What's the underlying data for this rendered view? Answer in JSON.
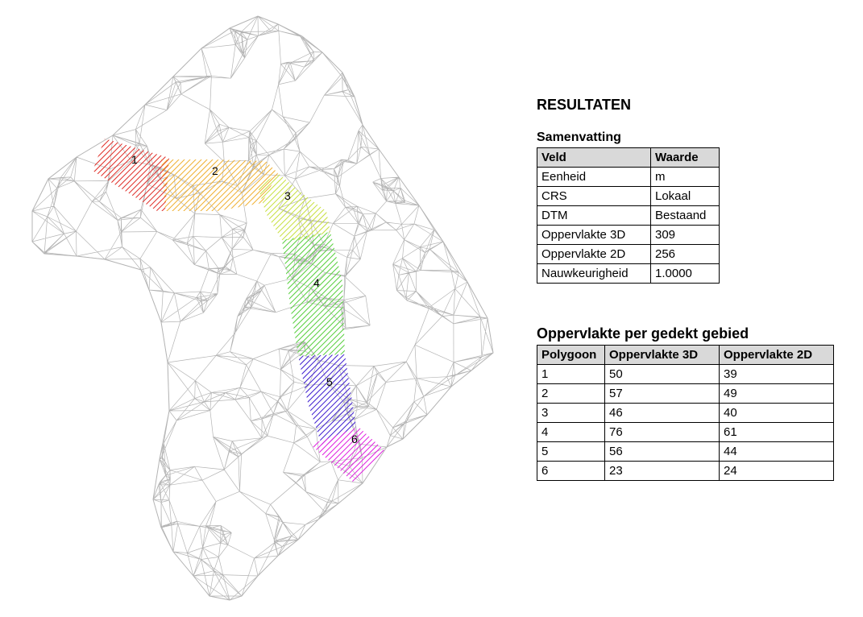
{
  "title": "RESULTATEN",
  "summary": {
    "heading": "Samenvatting",
    "columns": [
      "Veld",
      "Waarde"
    ],
    "rows": [
      [
        "Eenheid",
        "m"
      ],
      [
        "CRS",
        "Lokaal"
      ],
      [
        "DTM",
        "Bestaand"
      ],
      [
        "Oppervlakte 3D",
        "309"
      ],
      [
        "Oppervlakte 2D",
        "256"
      ],
      [
        "Nauwkeurigheid",
        "1.0000"
      ]
    ]
  },
  "areas": {
    "heading": "Oppervlakte per gedekt gebied",
    "columns": [
      "Polygoon",
      "Oppervlakte 3D",
      "Oppervlakte 2D"
    ],
    "rows": [
      [
        "1",
        "50",
        "39"
      ],
      [
        "2",
        "57",
        "49"
      ],
      [
        "3",
        "46",
        "40"
      ],
      [
        "4",
        "76",
        "61"
      ],
      [
        "5",
        "56",
        "44"
      ],
      [
        "6",
        "23",
        "24"
      ]
    ]
  },
  "map": {
    "mesh_color": "#b4b4b4",
    "polygon_labels": [
      "1",
      "2",
      "3",
      "4",
      "5",
      "6"
    ],
    "polygon_colors": [
      "#e0302a",
      "#f0b030",
      "#c8e040",
      "#5ad040",
      "#4020d0",
      "#e020e0"
    ]
  }
}
